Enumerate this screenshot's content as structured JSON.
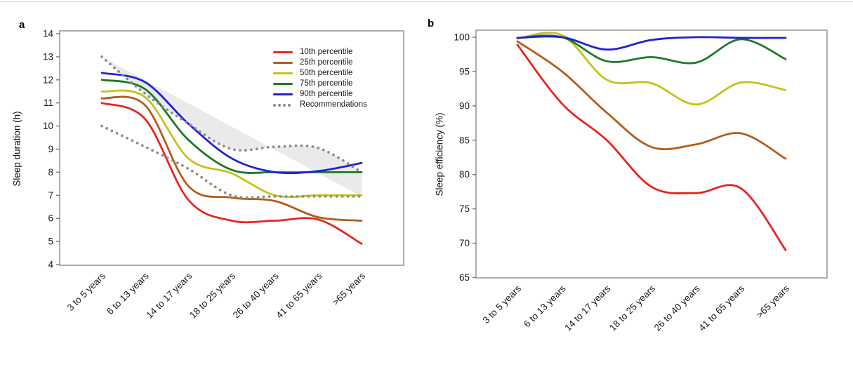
{
  "panels": {
    "a": {
      "letter": "a",
      "y_axis_title": "Sleep duration (h)"
    },
    "b": {
      "letter": "b",
      "y_axis_title": "Sleep efficiency (%)"
    }
  },
  "colors": {
    "p10": "#e82420",
    "p25": "#b25c1e",
    "p50": "#c3c21e",
    "p75": "#1c7a28",
    "p90": "#2222d3",
    "recommendations": "#8c8c8c",
    "band_fill": "#eaeaea",
    "plot_border": "#999999"
  },
  "chart_data": [
    {
      "panel": "a",
      "type": "line",
      "title": "",
      "xlabel": "",
      "ylabel": "Sleep duration (h)",
      "ylim": [
        4,
        14
      ],
      "ytick_step": 1,
      "grid": false,
      "legend_position": "top-right-inside",
      "categories": [
        "3 to 5 years",
        "6 to 13 years",
        "14 to 17 years",
        "18 to 25 years",
        "26 to 40 years",
        "41 to 65 years",
        ">65 years"
      ],
      "series": [
        {
          "name": "10th percentile",
          "color": "#e82420",
          "style": "solid",
          "values": [
            11.0,
            10.3,
            6.8,
            5.9,
            5.9,
            5.95,
            4.9
          ]
        },
        {
          "name": "25th percentile",
          "color": "#b25c1e",
          "style": "solid",
          "values": [
            11.2,
            10.9,
            7.4,
            6.9,
            6.75,
            6.05,
            5.9
          ]
        },
        {
          "name": "50th percentile",
          "color": "#c3c21e",
          "style": "solid",
          "values": [
            11.5,
            11.25,
            8.6,
            7.95,
            7.0,
            7.0,
            7.0
          ]
        },
        {
          "name": "75th percentile",
          "color": "#1c7a28",
          "style": "solid",
          "values": [
            12.0,
            11.6,
            9.4,
            8.1,
            8.0,
            8.0,
            8.0
          ]
        },
        {
          "name": "90th percentile",
          "color": "#2222d3",
          "style": "solid",
          "values": [
            12.3,
            11.9,
            10.1,
            8.6,
            8.0,
            8.05,
            8.4
          ]
        },
        {
          "name": "Recommendations",
          "color": "#8c8c8c",
          "style": "dotted",
          "band_fill": "#eaeaea",
          "values_upper": [
            13.0,
            11.4,
            10.1,
            9.0,
            9.1,
            9.05,
            8.0
          ],
          "values_lower": [
            10.0,
            9.1,
            8.15,
            7.0,
            6.95,
            6.95,
            6.95
          ]
        }
      ]
    },
    {
      "panel": "b",
      "type": "line",
      "title": "",
      "xlabel": "",
      "ylabel": "Sleep efficiency (%)",
      "ylim": [
        65,
        100
      ],
      "ytick_step": 5,
      "grid": false,
      "legend_position": "none",
      "categories": [
        "3 to 5 years",
        "6 to 13 years",
        "14 to 17 years",
        "18 to 25 years",
        "26 to 40 years",
        "41 to 65 years",
        ">65 years"
      ],
      "series": [
        {
          "name": "10th percentile",
          "color": "#e82420",
          "style": "solid",
          "values": [
            98.9,
            90.3,
            85.0,
            78.2,
            77.3,
            78.0,
            69.0
          ]
        },
        {
          "name": "25th percentile",
          "color": "#b25c1e",
          "style": "solid",
          "values": [
            99.4,
            95.0,
            89.0,
            84.0,
            84.4,
            86.0,
            82.3
          ]
        },
        {
          "name": "50th percentile",
          "color": "#c3c21e",
          "style": "solid",
          "values": [
            99.8,
            100.3,
            93.8,
            93.3,
            90.2,
            93.4,
            92.3
          ]
        },
        {
          "name": "75th percentile",
          "color": "#1c7a28",
          "style": "solid",
          "values": [
            99.9,
            100.0,
            96.5,
            97.1,
            96.3,
            99.7,
            96.8
          ]
        },
        {
          "name": "90th percentile",
          "color": "#2222d3",
          "style": "solid",
          "values": [
            99.9,
            100.0,
            98.2,
            99.6,
            100.0,
            99.9,
            99.9
          ]
        }
      ]
    }
  ]
}
